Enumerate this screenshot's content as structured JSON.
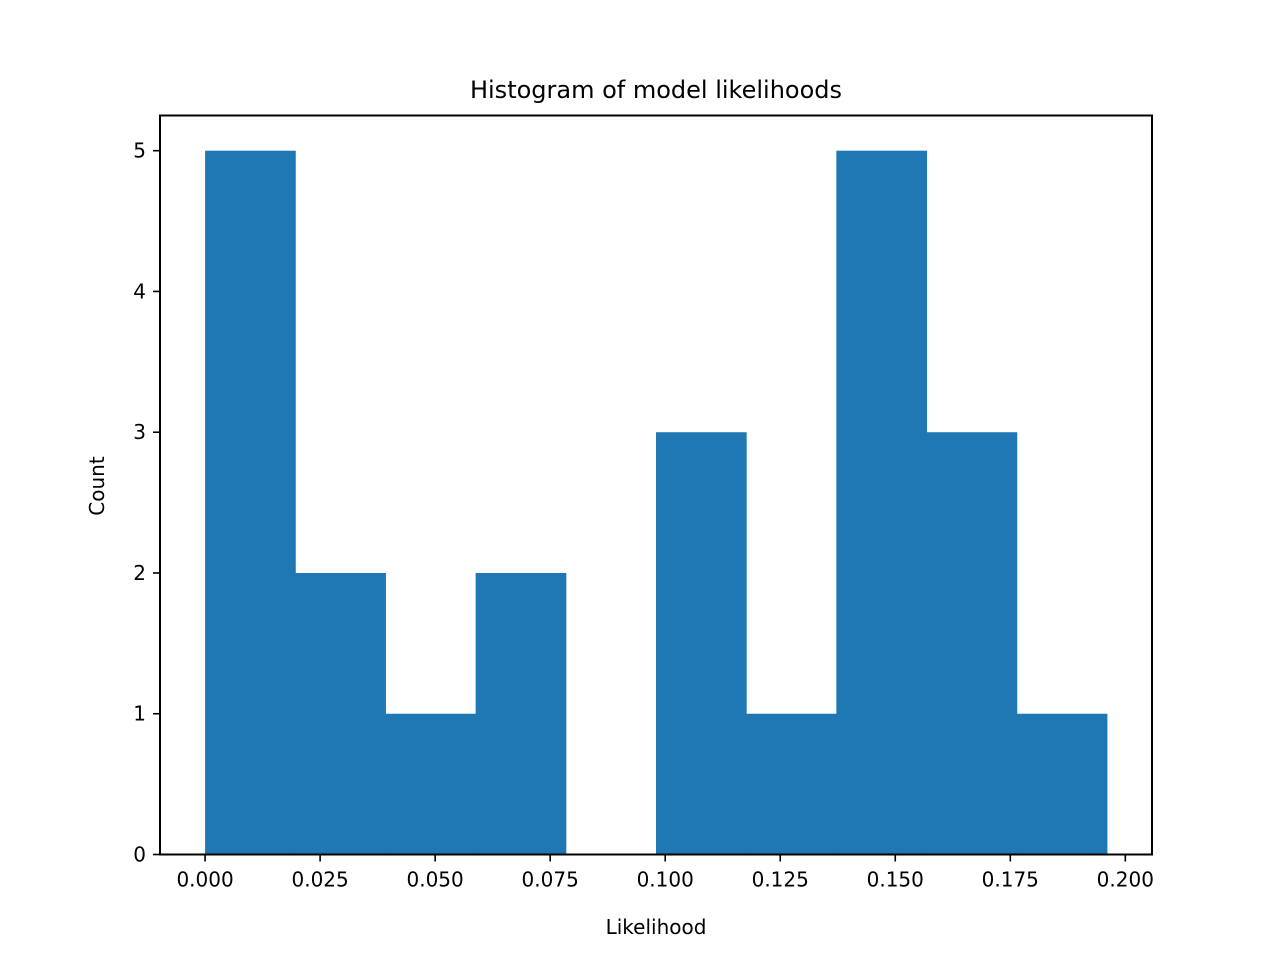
{
  "chart_data": {
    "type": "bar",
    "title": "Histogram of model likelihoods",
    "xlabel": "Likelihood",
    "ylabel": "Count",
    "xlim": [
      -0.0098,
      0.2058
    ],
    "ylim": [
      0,
      5.25
    ],
    "bin_edges": [
      0.0,
      0.0196,
      0.0392,
      0.0588,
      0.0784,
      0.098,
      0.1176,
      0.1372,
      0.1568,
      0.1764,
      0.196
    ],
    "counts": [
      5,
      2,
      1,
      2,
      0,
      3,
      1,
      5,
      3,
      1
    ],
    "x_ticks": [
      0.0,
      0.025,
      0.05,
      0.075,
      0.1,
      0.125,
      0.15,
      0.175,
      0.2
    ],
    "x_tick_labels": [
      "0.000",
      "0.025",
      "0.050",
      "0.075",
      "0.100",
      "0.125",
      "0.150",
      "0.175",
      "0.200"
    ],
    "y_ticks": [
      0,
      1,
      2,
      3,
      4,
      5
    ],
    "y_tick_labels": [
      "0",
      "1",
      "2",
      "3",
      "4",
      "5"
    ],
    "grid": false,
    "colors": {
      "bar": "#1f77b4",
      "axes": "#000000",
      "background": "#ffffff"
    }
  }
}
